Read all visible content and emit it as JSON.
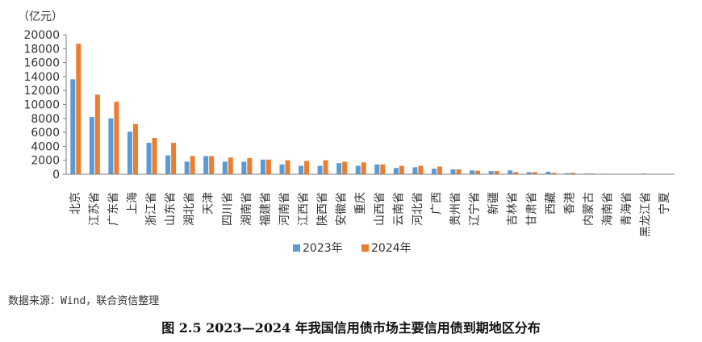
{
  "chart_data": {
    "type": "bar",
    "unit": "（亿元）",
    "ylim": [
      0,
      20000
    ],
    "yticks": [
      "0",
      "2000",
      "4000",
      "6000",
      "8000",
      "10000",
      "12000",
      "14000",
      "16000",
      "18000",
      "20000"
    ],
    "grid": false,
    "legend_position": "bottom",
    "categories": [
      "北京",
      "江苏省",
      "广东省",
      "上海",
      "浙江省",
      "山东省",
      "湖北省",
      "天津",
      "四川省",
      "湖南省",
      "福建省",
      "河南省",
      "江西省",
      "陕西省",
      "安徽省",
      "重庆",
      "山西省",
      "云南省",
      "河北省",
      "广西",
      "贵州省",
      "辽宁省",
      "新疆",
      "吉林省",
      "甘肃省",
      "西藏",
      "香港",
      "内蒙古",
      "海南省",
      "青海省",
      "黑龙江省",
      "宁夏"
    ],
    "series": [
      {
        "name": "2023年",
        "color": "#5B9BD5",
        "values": [
          13600,
          8200,
          8000,
          6100,
          4500,
          2700,
          1800,
          2600,
          1800,
          1800,
          2100,
          1400,
          1200,
          1200,
          1600,
          1200,
          1400,
          900,
          1000,
          800,
          700,
          550,
          450,
          550,
          300,
          350,
          150,
          100,
          80,
          60,
          100,
          60
        ]
      },
      {
        "name": "2024年",
        "color": "#ED7D31",
        "values": [
          18700,
          11400,
          10400,
          7200,
          5200,
          4500,
          2600,
          2600,
          2400,
          2300,
          2100,
          2000,
          1900,
          2000,
          1800,
          1700,
          1400,
          1200,
          1200,
          1100,
          700,
          500,
          450,
          300,
          300,
          200,
          200,
          100,
          70,
          60,
          50,
          40
        ]
      }
    ]
  },
  "source_text": "数据来源：Wind，联合资信整理",
  "caption": "图 2.5    2023—2024 年我国信用债市场主要信用债到期地区分布"
}
